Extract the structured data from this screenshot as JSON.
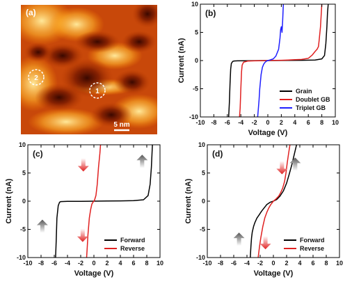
{
  "panel_a": {
    "label": "(a)",
    "scale_bar_label": "5 nm",
    "markers": [
      "1",
      "2"
    ],
    "colormap": "afmhot"
  },
  "chart_data": [
    {
      "id": "b",
      "type": "line",
      "panel_label": "(b)",
      "xlabel": "Voltage (V)",
      "ylabel": "Current (nA)",
      "xlim": [
        -10,
        10
      ],
      "ylim": [
        -10,
        10
      ],
      "xticks": [
        -10,
        -8,
        -6,
        -4,
        -2,
        0,
        2,
        4,
        6,
        8,
        10
      ],
      "yticks": [
        -10,
        -5,
        0,
        5,
        10
      ],
      "legend_position": "bottom-right",
      "series": [
        {
          "name": "Grain",
          "color": "#000000",
          "x": [
            -5.8,
            -5.7,
            -5.6,
            -5.5,
            -5.4,
            -5.2,
            -5.0,
            -4.5,
            -3,
            -1,
            1,
            3,
            5,
            7,
            8.0,
            8.4,
            8.6,
            8.75,
            8.85,
            8.95
          ],
          "y": [
            -10,
            -7.5,
            -4,
            -1.5,
            -0.5,
            -0.15,
            -0.08,
            -0.05,
            -0.02,
            0,
            0,
            0.02,
            0.05,
            0.1,
            0.3,
            0.9,
            3,
            6,
            8.5,
            10
          ]
        },
        {
          "name": "Doublet GB",
          "color": "#e02020",
          "x": [
            -4.2,
            -4.1,
            -4.0,
            -3.9,
            -3.8,
            -3.6,
            -3.0,
            -2,
            -1,
            0,
            1,
            2,
            3,
            4,
            5,
            6,
            6.6,
            7.0,
            7.3,
            7.5,
            7.6,
            7.8,
            8.0
          ],
          "y": [
            -10,
            -8.5,
            -5,
            -2,
            -0.8,
            -0.3,
            -0.1,
            -0.05,
            -0.02,
            0,
            0.02,
            0.05,
            0.1,
            0.15,
            0.2,
            0.4,
            1.0,
            1.6,
            2.0,
            2.5,
            3.5,
            6,
            10
          ]
        },
        {
          "name": "Triplet GB",
          "color": "#1f1fff",
          "x": [
            -1.5,
            -1.3,
            -1.2,
            -1.0,
            -0.8,
            -0.6,
            -0.4,
            -0.2,
            0,
            0.3,
            0.8,
            1.2,
            1.6,
            1.8,
            1.9,
            2.0,
            2.1,
            2.2,
            2.3
          ],
          "y": [
            -10,
            -7,
            -5,
            -2.5,
            -1.2,
            -0.6,
            -0.3,
            -0.1,
            0,
            0.1,
            0.3,
            0.8,
            2.0,
            4.0,
            5.5,
            6.0,
            5.0,
            7,
            10
          ]
        }
      ]
    },
    {
      "id": "c",
      "type": "line",
      "panel_label": "(c)",
      "xlabel": "Voltage (V)",
      "ylabel": "Current (nA)",
      "xlim": [
        -10,
        10
      ],
      "ylim": [
        -10,
        10
      ],
      "xticks": [
        -10,
        -8,
        -6,
        -4,
        -2,
        0,
        2,
        4,
        6,
        8,
        10
      ],
      "yticks": [
        -10,
        -5,
        0,
        5,
        10
      ],
      "legend_position": "bottom-right",
      "series": [
        {
          "name": "Forward",
          "color": "#000000",
          "x": [
            -5.8,
            -5.7,
            -5.6,
            -5.4,
            -5.2,
            -5.0,
            -4.0,
            -2,
            0,
            2,
            4,
            6,
            7.5,
            8.2,
            8.5,
            8.7,
            8.85
          ],
          "y": [
            -10,
            -7,
            -3,
            -0.8,
            -0.2,
            -0.08,
            -0.04,
            -0.02,
            0,
            0.02,
            0.05,
            0.1,
            0.25,
            1.0,
            3,
            6,
            10
          ]
        },
        {
          "name": "Reverse",
          "color": "#e02020",
          "x": [
            -1.1,
            -1.0,
            -0.9,
            -0.7,
            -0.5,
            -0.3,
            -0.1,
            0,
            0.1,
            0.3,
            0.5,
            0.7,
            0.9,
            1.0
          ],
          "y": [
            -10,
            -8,
            -6,
            -3,
            -1.5,
            -0.5,
            -0.1,
            0,
            0.2,
            1.0,
            3,
            6,
            8.5,
            10
          ]
        }
      ],
      "arrows": [
        {
          "x": -7.8,
          "y": -4.5,
          "direction": "up",
          "color": "#555555"
        },
        {
          "x": -1.6,
          "y": 6.5,
          "direction": "down",
          "color": "#e02020"
        },
        {
          "x": -1.7,
          "y": -6.0,
          "direction": "down",
          "color": "#e02020"
        },
        {
          "x": 7.3,
          "y": 7.0,
          "direction": "up",
          "color": "#555555"
        }
      ]
    },
    {
      "id": "d",
      "type": "line",
      "panel_label": "(d)",
      "xlabel": "Voltage (V)",
      "ylabel": "Current (nA)",
      "xlim": [
        -10,
        10
      ],
      "ylim": [
        -10,
        10
      ],
      "xticks": [
        -10,
        -8,
        -6,
        -4,
        -2,
        0,
        2,
        4,
        6,
        8,
        10
      ],
      "yticks": [
        -10,
        -5,
        0,
        5,
        10
      ],
      "legend_position": "bottom-right",
      "series": [
        {
          "name": "Forward",
          "color": "#000000",
          "x": [
            -3.5,
            -3.4,
            -3.3,
            -3.2,
            -3.0,
            -2.8,
            -2.5,
            -2.2,
            -1.8,
            -1.4,
            -1.0,
            -0.5,
            0,
            0.5,
            1.0,
            1.5,
            2.0,
            2.4,
            2.8,
            3.2,
            3.5
          ],
          "y": [
            -10,
            -8,
            -6.5,
            -5.5,
            -4.5,
            -3.8,
            -3.0,
            -2.5,
            -1.8,
            -1.2,
            -0.6,
            -0.2,
            0,
            0.3,
            0.9,
            1.8,
            3.2,
            4.8,
            6.5,
            8.5,
            10
          ]
        },
        {
          "name": "Reverse",
          "color": "#e02020",
          "x": [
            -2.3,
            -2.1,
            -1.9,
            -1.6,
            -1.3,
            -1.0,
            -0.7,
            -0.4,
            0,
            0.4,
            0.8,
            1.1,
            1.4,
            1.7,
            1.9,
            2.1,
            2.3,
            2.5
          ],
          "y": [
            -10,
            -8,
            -6.5,
            -4.5,
            -3.0,
            -2.0,
            -1.2,
            -0.6,
            0,
            0.4,
            0.9,
            1.5,
            2.3,
            3.5,
            5.0,
            6.8,
            8.5,
            10
          ]
        }
      ],
      "arrows": [
        {
          "x": -5.2,
          "y": -6.8,
          "direction": "up",
          "color": "#555555"
        },
        {
          "x": 1.3,
          "y": 6.0,
          "direction": "down",
          "color": "#e02020"
        },
        {
          "x": -1.2,
          "y": -7.3,
          "direction": "down",
          "color": "#e02020"
        },
        {
          "x": 3.3,
          "y": 6.5,
          "direction": "up",
          "color": "#555555"
        }
      ]
    }
  ]
}
